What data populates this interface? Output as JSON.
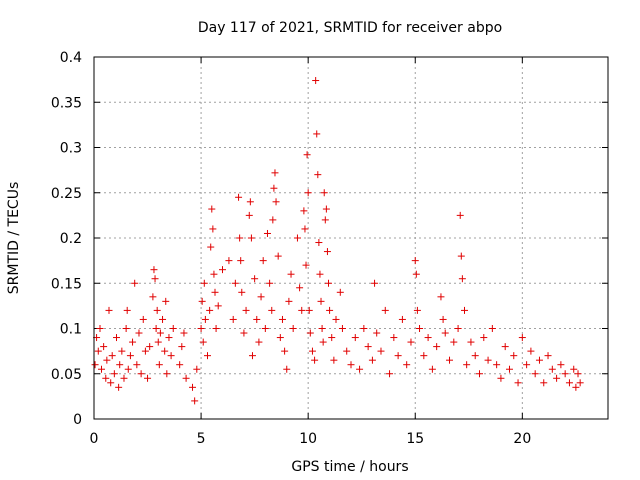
{
  "chart_data": {
    "type": "scatter",
    "title": "Day 117 of 2021, SRMTID for receiver abpo",
    "xlabel": "GPS time / hours",
    "ylabel": "SRMTID / TECUs",
    "xlim": [
      0,
      24
    ],
    "ylim": [
      0,
      0.4
    ],
    "xticks": [
      0,
      5,
      10,
      15,
      20
    ],
    "xtick_labels": [
      "0",
      "5",
      "10",
      "15",
      "20"
    ],
    "yticks": [
      0,
      0.05,
      0.1,
      0.15,
      0.2,
      0.25,
      0.3,
      0.35,
      0.4
    ],
    "ytick_labels": [
      "0",
      "0.05",
      "0.1",
      "0.15",
      "0.2",
      "0.25",
      "0.3",
      "0.35",
      "0.4"
    ],
    "grid": true,
    "marker": "plus",
    "color": "#e00000",
    "series": [
      {
        "name": "SRMTID",
        "points": [
          [
            0.05,
            0.06
          ],
          [
            0.12,
            0.09
          ],
          [
            0.2,
            0.075
          ],
          [
            0.28,
            0.1
          ],
          [
            0.35,
            0.055
          ],
          [
            0.45,
            0.08
          ],
          [
            0.55,
            0.045
          ],
          [
            0.6,
            0.065
          ],
          [
            0.7,
            0.12
          ],
          [
            0.78,
            0.04
          ],
          [
            0.85,
            0.07
          ],
          [
            0.95,
            0.05
          ],
          [
            1.05,
            0.09
          ],
          [
            1.15,
            0.035
          ],
          [
            1.2,
            0.06
          ],
          [
            1.3,
            0.075
          ],
          [
            1.4,
            0.045
          ],
          [
            1.5,
            0.1
          ],
          [
            1.55,
            0.12
          ],
          [
            1.6,
            0.055
          ],
          [
            1.7,
            0.07
          ],
          [
            1.8,
            0.085
          ],
          [
            1.9,
            0.15
          ],
          [
            2.0,
            0.06
          ],
          [
            2.1,
            0.095
          ],
          [
            2.2,
            0.05
          ],
          [
            2.3,
            0.11
          ],
          [
            2.4,
            0.075
          ],
          [
            2.5,
            0.045
          ],
          [
            2.6,
            0.08
          ],
          [
            2.75,
            0.135
          ],
          [
            2.8,
            0.165
          ],
          [
            2.85,
            0.155
          ],
          [
            2.9,
            0.1
          ],
          [
            2.95,
            0.12
          ],
          [
            3.0,
            0.085
          ],
          [
            3.05,
            0.06
          ],
          [
            3.1,
            0.095
          ],
          [
            3.2,
            0.11
          ],
          [
            3.3,
            0.075
          ],
          [
            3.35,
            0.13
          ],
          [
            3.4,
            0.05
          ],
          [
            3.5,
            0.09
          ],
          [
            3.6,
            0.07
          ],
          [
            3.7,
            0.1
          ],
          [
            4.0,
            0.06
          ],
          [
            4.1,
            0.08
          ],
          [
            4.2,
            0.095
          ],
          [
            4.3,
            0.045
          ],
          [
            4.6,
            0.035
          ],
          [
            4.7,
            0.02
          ],
          [
            4.8,
            0.055
          ],
          [
            5.0,
            0.1
          ],
          [
            5.05,
            0.13
          ],
          [
            5.1,
            0.085
          ],
          [
            5.15,
            0.15
          ],
          [
            5.2,
            0.11
          ],
          [
            5.3,
            0.07
          ],
          [
            5.4,
            0.12
          ],
          [
            5.45,
            0.19
          ],
          [
            5.5,
            0.232
          ],
          [
            5.55,
            0.21
          ],
          [
            5.6,
            0.16
          ],
          [
            5.65,
            0.14
          ],
          [
            5.7,
            0.1
          ],
          [
            5.8,
            0.125
          ],
          [
            6.0,
            0.165
          ],
          [
            6.3,
            0.175
          ],
          [
            6.5,
            0.11
          ],
          [
            6.6,
            0.15
          ],
          [
            6.75,
            0.245
          ],
          [
            6.8,
            0.2
          ],
          [
            6.85,
            0.175
          ],
          [
            6.9,
            0.14
          ],
          [
            7.0,
            0.095
          ],
          [
            7.1,
            0.12
          ],
          [
            7.25,
            0.225
          ],
          [
            7.3,
            0.24
          ],
          [
            7.35,
            0.2
          ],
          [
            7.4,
            0.07
          ],
          [
            7.5,
            0.155
          ],
          [
            7.6,
            0.11
          ],
          [
            7.7,
            0.085
          ],
          [
            7.8,
            0.135
          ],
          [
            7.9,
            0.175
          ],
          [
            8.0,
            0.1
          ],
          [
            8.1,
            0.205
          ],
          [
            8.2,
            0.15
          ],
          [
            8.3,
            0.12
          ],
          [
            8.35,
            0.22
          ],
          [
            8.4,
            0.255
          ],
          [
            8.45,
            0.272
          ],
          [
            8.5,
            0.24
          ],
          [
            8.6,
            0.18
          ],
          [
            8.7,
            0.09
          ],
          [
            8.8,
            0.11
          ],
          [
            8.9,
            0.075
          ],
          [
            9.0,
            0.055
          ],
          [
            9.1,
            0.13
          ],
          [
            9.2,
            0.16
          ],
          [
            9.3,
            0.1
          ],
          [
            9.5,
            0.2
          ],
          [
            9.6,
            0.145
          ],
          [
            9.7,
            0.12
          ],
          [
            9.8,
            0.23
          ],
          [
            9.85,
            0.21
          ],
          [
            9.9,
            0.17
          ],
          [
            9.95,
            0.292
          ],
          [
            10.0,
            0.25
          ],
          [
            10.05,
            0.12
          ],
          [
            10.1,
            0.095
          ],
          [
            10.2,
            0.075
          ],
          [
            10.3,
            0.065
          ],
          [
            10.35,
            0.374
          ],
          [
            10.4,
            0.315
          ],
          [
            10.45,
            0.27
          ],
          [
            10.5,
            0.195
          ],
          [
            10.55,
            0.16
          ],
          [
            10.6,
            0.13
          ],
          [
            10.65,
            0.1
          ],
          [
            10.7,
            0.085
          ],
          [
            10.75,
            0.25
          ],
          [
            10.8,
            0.22
          ],
          [
            10.85,
            0.232
          ],
          [
            10.9,
            0.185
          ],
          [
            10.95,
            0.15
          ],
          [
            11.0,
            0.12
          ],
          [
            11.1,
            0.09
          ],
          [
            11.2,
            0.065
          ],
          [
            11.3,
            0.11
          ],
          [
            11.5,
            0.14
          ],
          [
            11.6,
            0.1
          ],
          [
            11.8,
            0.075
          ],
          [
            12.0,
            0.06
          ],
          [
            12.2,
            0.09
          ],
          [
            12.4,
            0.055
          ],
          [
            12.6,
            0.1
          ],
          [
            12.8,
            0.08
          ],
          [
            13.0,
            0.065
          ],
          [
            13.1,
            0.15
          ],
          [
            13.2,
            0.095
          ],
          [
            13.4,
            0.075
          ],
          [
            13.6,
            0.12
          ],
          [
            13.8,
            0.05
          ],
          [
            14.0,
            0.09
          ],
          [
            14.2,
            0.07
          ],
          [
            14.4,
            0.11
          ],
          [
            14.6,
            0.06
          ],
          [
            14.8,
            0.085
          ],
          [
            15.0,
            0.175
          ],
          [
            15.05,
            0.16
          ],
          [
            15.1,
            0.12
          ],
          [
            15.2,
            0.1
          ],
          [
            15.4,
            0.07
          ],
          [
            15.6,
            0.09
          ],
          [
            15.8,
            0.055
          ],
          [
            16.0,
            0.08
          ],
          [
            16.2,
            0.135
          ],
          [
            16.3,
            0.11
          ],
          [
            16.4,
            0.095
          ],
          [
            16.6,
            0.065
          ],
          [
            16.8,
            0.085
          ],
          [
            17.0,
            0.1
          ],
          [
            17.1,
            0.225
          ],
          [
            17.15,
            0.18
          ],
          [
            17.2,
            0.155
          ],
          [
            17.3,
            0.12
          ],
          [
            17.4,
            0.06
          ],
          [
            17.6,
            0.085
          ],
          [
            17.8,
            0.07
          ],
          [
            18.0,
            0.05
          ],
          [
            18.2,
            0.09
          ],
          [
            18.4,
            0.065
          ],
          [
            18.6,
            0.1
          ],
          [
            18.8,
            0.06
          ],
          [
            19.0,
            0.045
          ],
          [
            19.2,
            0.08
          ],
          [
            19.4,
            0.055
          ],
          [
            19.6,
            0.07
          ],
          [
            19.8,
            0.04
          ],
          [
            20.0,
            0.09
          ],
          [
            20.2,
            0.06
          ],
          [
            20.4,
            0.075
          ],
          [
            20.6,
            0.05
          ],
          [
            20.8,
            0.065
          ],
          [
            21.0,
            0.04
          ],
          [
            21.2,
            0.07
          ],
          [
            21.4,
            0.055
          ],
          [
            21.6,
            0.045
          ],
          [
            21.8,
            0.06
          ],
          [
            22.0,
            0.05
          ],
          [
            22.2,
            0.04
          ],
          [
            22.4,
            0.055
          ],
          [
            22.5,
            0.035
          ],
          [
            22.6,
            0.05
          ],
          [
            22.7,
            0.04
          ]
        ]
      }
    ]
  }
}
